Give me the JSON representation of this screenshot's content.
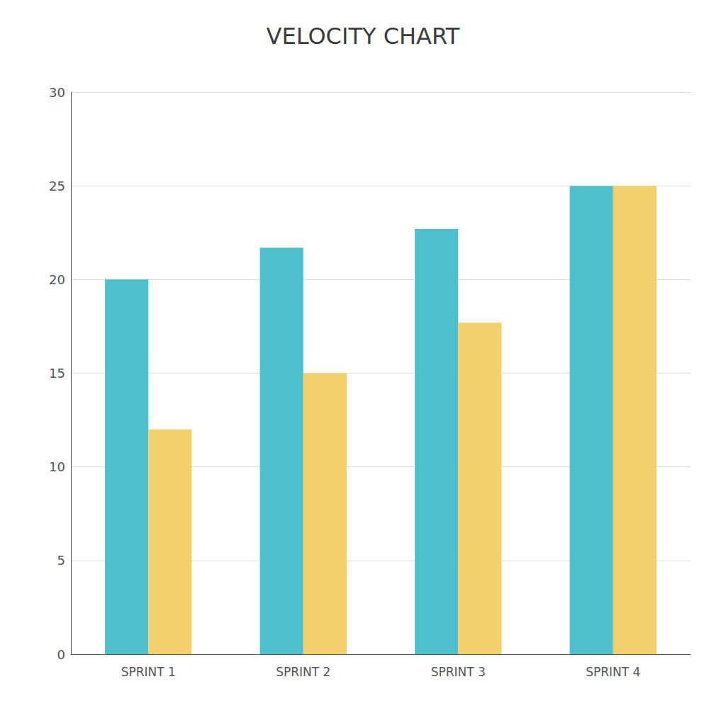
{
  "chart_data": {
    "type": "bar",
    "title": "VELOCITY CHART",
    "categories": [
      "SPRINT 1",
      "SPRINT 2",
      "SPRINT 3",
      "SPRINT 4"
    ],
    "series": [
      {
        "color": "#4dbfce",
        "values": [
          20,
          21.7,
          22.7,
          25
        ]
      },
      {
        "color": "#f5d06a",
        "values": [
          12,
          15,
          17.7,
          25
        ]
      }
    ],
    "ylim": [
      0,
      30
    ],
    "yticks": [
      0,
      5,
      10,
      15,
      20,
      25,
      30
    ],
    "grid": true
  }
}
